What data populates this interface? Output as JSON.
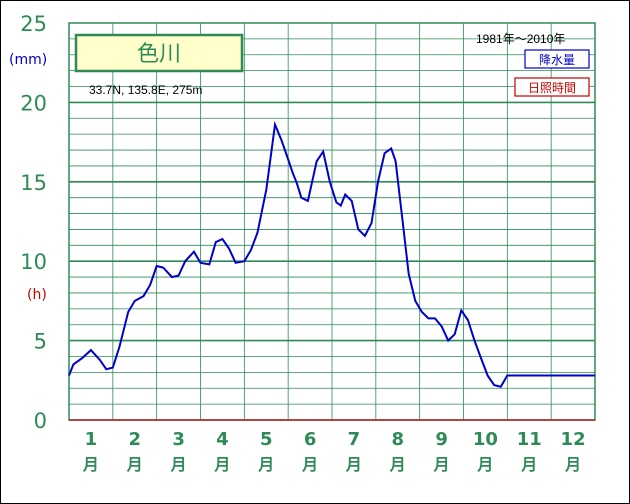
{
  "station": {
    "name": "色川",
    "coords": "33.7N,  135.8E,  275m",
    "period": "1981年〜2010年"
  },
  "legend": {
    "rain": "降水量",
    "sun": "日照時間"
  },
  "axis": {
    "y_unit_rain": "(mm)",
    "y_unit_sun": "(h)",
    "y_ticks": [
      "0",
      "5",
      "10",
      "15",
      "20",
      "25"
    ],
    "months": [
      "1",
      "2",
      "3",
      "4",
      "5",
      "6",
      "7",
      "8",
      "9",
      "10",
      "11",
      "12"
    ],
    "month_suffix": "月"
  },
  "colors": {
    "grid": "#2e8b57",
    "rain_line": "#0000cc",
    "sun_label": "#cc0000",
    "title_box_fill": "#ffffcc"
  },
  "chart_data": {
    "type": "line",
    "title": "色川",
    "xlabel": "",
    "ylabel": "(mm)",
    "ylim": [
      0,
      25
    ],
    "x_range": [
      1,
      13
    ],
    "series": [
      {
        "name": "降水量",
        "x": [
          1.0,
          1.1,
          1.3,
          1.5,
          1.7,
          1.85,
          2.0,
          2.15,
          2.35,
          2.5,
          2.7,
          2.85,
          3.0,
          3.15,
          3.35,
          3.5,
          3.65,
          3.85,
          4.0,
          4.2,
          4.35,
          4.5,
          4.65,
          4.8,
          5.0,
          5.15,
          5.3,
          5.5,
          5.7,
          5.85,
          6.0,
          6.1,
          6.2,
          6.3,
          6.45,
          6.65,
          6.8,
          6.95,
          7.1,
          7.2,
          7.3,
          7.45,
          7.6,
          7.75,
          7.9,
          8.05,
          8.2,
          8.35,
          8.45,
          8.6,
          8.75,
          8.9,
          9.05,
          9.2,
          9.35,
          9.5,
          9.65,
          9.8,
          9.95,
          10.1,
          10.25,
          10.4,
          10.55,
          10.7,
          10.85,
          11.0,
          11.15,
          11.25,
          11.35,
          11.5,
          11.65,
          11.8,
          11.95,
          12.1,
          12.25,
          12.4,
          12.55,
          12.7,
          12.85,
          13.0
        ],
        "values": [
          2.8,
          3.5,
          3.9,
          4.4,
          3.8,
          3.2,
          3.3,
          4.6,
          6.8,
          7.5,
          7.8,
          8.5,
          9.7,
          9.6,
          9.0,
          9.1,
          10.0,
          10.6,
          9.9,
          9.8,
          11.2,
          11.4,
          10.8,
          9.9,
          10.0,
          10.7,
          11.8,
          14.5,
          18.6,
          17.6,
          16.4,
          15.6,
          14.9,
          14.0,
          13.8,
          16.3,
          16.9,
          15.0,
          13.7,
          13.5,
          14.2,
          13.8,
          12.0,
          11.6,
          12.4,
          15.0,
          16.8,
          17.1,
          16.3,
          12.8,
          9.2,
          7.5,
          6.8,
          6.4,
          6.4,
          5.9,
          5.0,
          5.4,
          6.9,
          6.3,
          5.0,
          3.9,
          2.8,
          2.2,
          2.1,
          2.8,
          2.8,
          2.8,
          2.8,
          2.8,
          2.8,
          2.8,
          2.8,
          2.8,
          2.8,
          2.8,
          2.8,
          2.8,
          2.8,
          2.8
        ]
      }
    ]
  }
}
